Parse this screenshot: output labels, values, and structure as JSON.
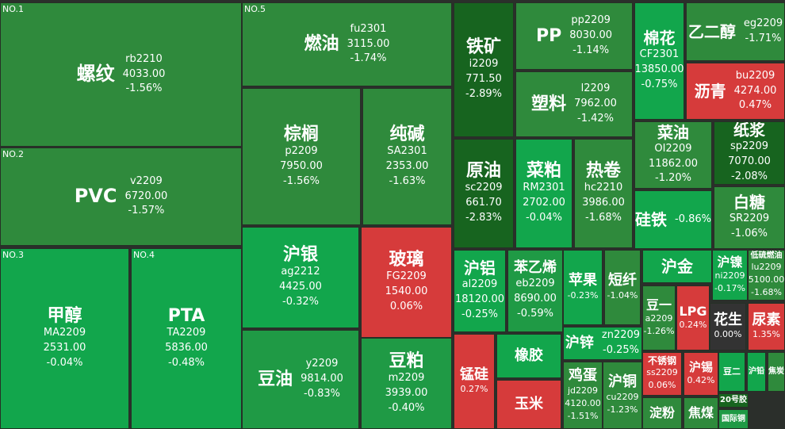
{
  "tiles": [
    {
      "rank": "NO.1",
      "name": "螺纹",
      "code": "rb2210",
      "price": "4033.00",
      "change": "-1.56%"
    },
    {
      "rank": "NO.2",
      "name": "PVC",
      "code": "v2209",
      "price": "6720.00",
      "change": "-1.57%"
    },
    {
      "rank": "NO.3",
      "name": "甲醇",
      "code": "MA2209",
      "price": "2531.00",
      "change": "-0.04%"
    },
    {
      "rank": "NO.4",
      "name": "PTA",
      "code": "TA2209",
      "price": "5836.00",
      "change": "-0.48%"
    },
    {
      "rank": "NO.5",
      "name": "燃油",
      "code": "fu2301",
      "price": "3115.00",
      "change": "-1.74%"
    },
    {
      "name": "棕榈",
      "code": "p2209",
      "price": "7950.00",
      "change": "-1.56%"
    },
    {
      "name": "纯碱",
      "code": "SA2301",
      "price": "2353.00",
      "change": "-1.63%"
    },
    {
      "name": "沪银",
      "code": "ag2212",
      "price": "4425.00",
      "change": "-0.32%"
    },
    {
      "name": "玻璃",
      "code": "FG2209",
      "price": "1540.00",
      "change": "0.06%"
    },
    {
      "name": "豆油",
      "code": "y2209",
      "price": "9814.00",
      "change": "-0.83%"
    },
    {
      "name": "豆粕",
      "code": "m2209",
      "price": "3939.00",
      "change": "-0.40%"
    },
    {
      "name": "铁矿",
      "code": "i2209",
      "price": "771.50",
      "change": "-2.89%"
    },
    {
      "name": "原油",
      "code": "sc2209",
      "price": "661.70",
      "change": "-2.83%"
    },
    {
      "name": "PP",
      "code": "pp2209",
      "price": "8030.00",
      "change": "-1.14%"
    },
    {
      "name": "塑料",
      "code": "l2209",
      "price": "7962.00",
      "change": "-1.42%"
    },
    {
      "name": "菜粕",
      "code": "RM2301",
      "price": "2702.00",
      "change": "-0.04%"
    },
    {
      "name": "热卷",
      "code": "hc2210",
      "price": "3986.00",
      "change": "-1.68%"
    },
    {
      "name": "棉花",
      "code": "CF2301",
      "price": "13850.00",
      "change": "-0.75%"
    },
    {
      "name": "乙二醇",
      "code": "eg2209",
      "change": "-1.71%"
    },
    {
      "name": "沥青",
      "code": "bu2209",
      "price": "4274.00",
      "change": "0.47%"
    },
    {
      "name": "菜油",
      "code": "OI2209",
      "price": "11862.00",
      "change": "-1.20%"
    },
    {
      "name": "纸浆",
      "code": "sp2209",
      "price": "7070.00",
      "change": "-2.08%"
    },
    {
      "name": "硅铁",
      "change": "-0.86%"
    },
    {
      "name": "白糖",
      "code": "SR2209",
      "change": "-1.06%"
    },
    {
      "name": "沪铝",
      "code": "al2209",
      "price": "18120.00",
      "change": "-0.25%"
    },
    {
      "name": "苯乙烯",
      "code": "eb2209",
      "price": "8690.00",
      "change": "-0.59%"
    },
    {
      "name": "苹果",
      "change": "-0.23%"
    },
    {
      "name": "短纤",
      "change": "-1.04%"
    },
    {
      "name": "沪金"
    },
    {
      "name": "沪镍",
      "code": "ni2209",
      "change": "-0.17%"
    },
    {
      "name": "低硫燃油",
      "code": "lu2209",
      "price": "5100.00",
      "change": "-1.68%"
    },
    {
      "name": "豆一",
      "code": "a2209",
      "change": "-1.26%"
    },
    {
      "name": "LPG",
      "change": "0.24%"
    },
    {
      "name": "花生",
      "change": "0.00%"
    },
    {
      "name": "尿素",
      "change": "1.35%"
    },
    {
      "name": "沪锌",
      "code": "zn2209",
      "change": "-0.25%"
    },
    {
      "name": "鸡蛋",
      "code": "jd2209",
      "price": "4120.00",
      "change": "-1.51%"
    },
    {
      "name": "沪铜",
      "code": "cu2209",
      "change": "-1.23%"
    },
    {
      "name": "锰硅",
      "change": "0.27%"
    },
    {
      "name": "橡胶"
    },
    {
      "name": "玉米"
    },
    {
      "name": "不锈钢",
      "code": "ss2209",
      "change": "0.06%"
    },
    {
      "name": "沪锡",
      "change": "0.42%"
    },
    {
      "name": "淀粉"
    },
    {
      "name": "焦煤"
    },
    {
      "name": "豆二"
    },
    {
      "name": "沪铅"
    },
    {
      "name": "焦炭"
    },
    {
      "name": "20号胶"
    },
    {
      "name": "国际铜"
    }
  ]
}
